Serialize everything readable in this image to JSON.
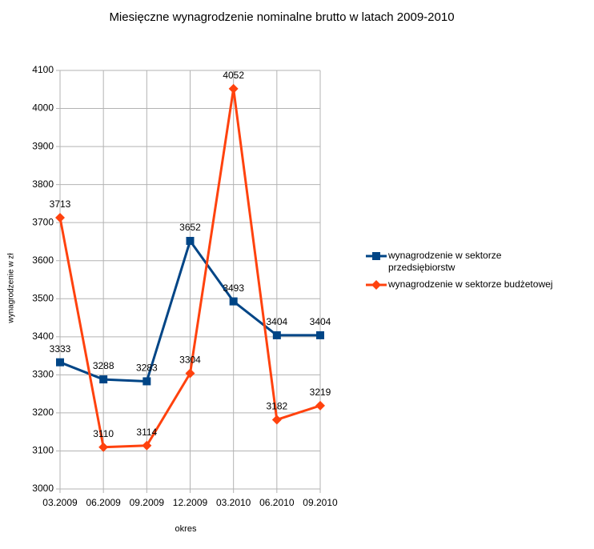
{
  "chart_data": {
    "type": "line",
    "title": "Miesięczne wynagrodzenie nominalne brutto w latach 2009-2010",
    "x_label": "okres",
    "y_label": "wynagrodzenie w zł",
    "categories": [
      "03.2009",
      "06.2009",
      "09.2009",
      "12.2009",
      "03.2010",
      "06.2010",
      "09.2010"
    ],
    "series": [
      {
        "name": "wynagrodzenie w sektorze przedsiębiorstw",
        "color": "#004586",
        "marker": "square",
        "values": [
          3333,
          3288,
          3283,
          3652,
          3493,
          3404,
          3404
        ]
      },
      {
        "name": "wynagrodzenie w sektorze budżetowej",
        "color": "#ff420e",
        "marker": "diamond",
        "values": [
          3713,
          3110,
          3114,
          3304,
          4052,
          3182,
          3219
        ]
      }
    ],
    "ylim": [
      3000,
      4100
    ],
    "yticks": [
      3000,
      3100,
      3200,
      3300,
      3400,
      3500,
      3600,
      3700,
      3800,
      3900,
      4000,
      4100
    ],
    "grid": true,
    "legend": "right"
  }
}
